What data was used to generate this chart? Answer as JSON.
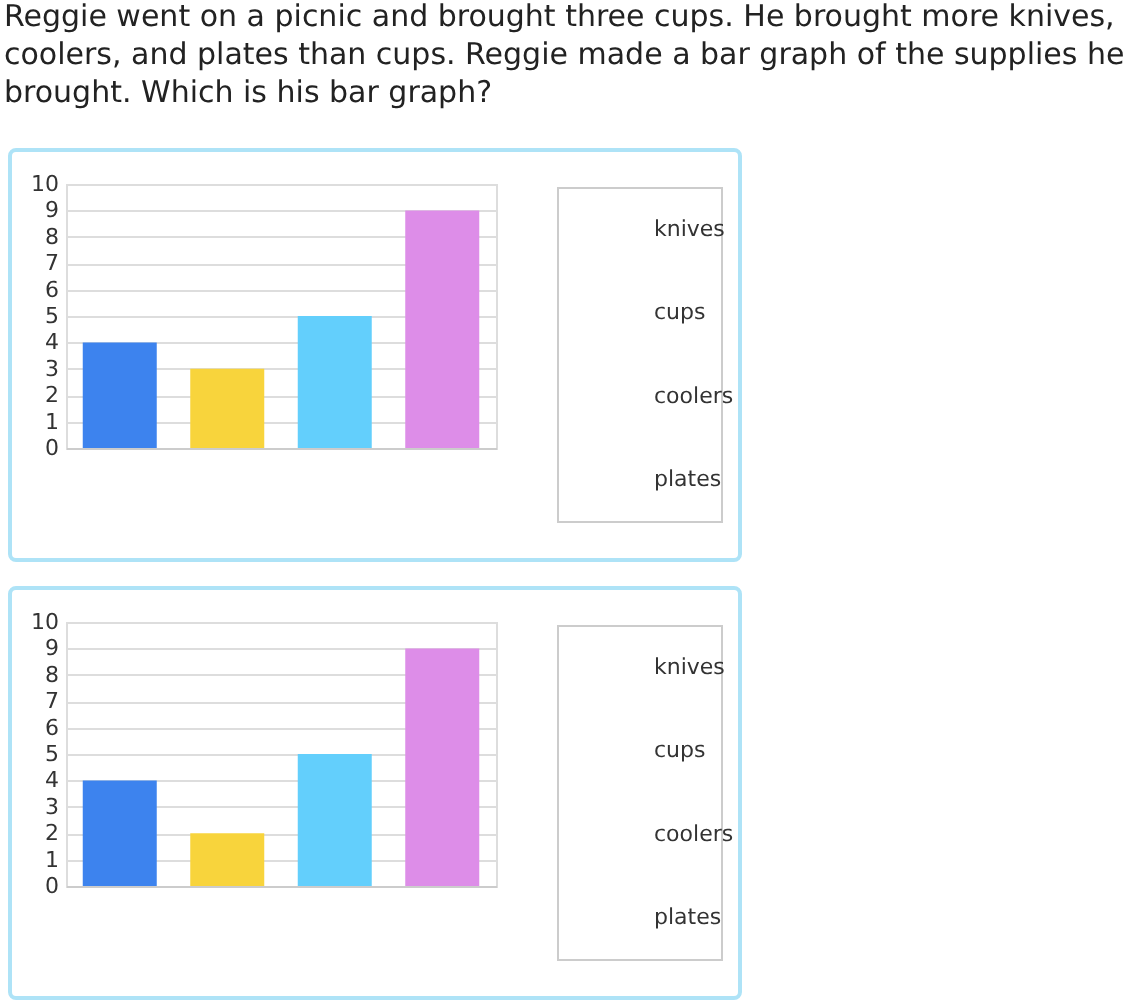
{
  "chart_data": [
    {
      "type": "bar",
      "title": "Reggie went on a picnic and brought three cups. He brought more knives, coolers, and plates than cups. Reggie made a bar graph of the supplies he brought. Which is his bar graph?",
      "categories": [
        null,
        null,
        null,
        null
      ],
      "values": [
        4,
        3,
        5,
        9
      ],
      "colors": [
        "#3d83ee",
        "#f8d43c",
        "#63cffc",
        "#dd8de8"
      ],
      "ylim": [
        0,
        10
      ],
      "yticks": [
        0,
        1,
        2,
        3,
        4,
        5,
        6,
        7,
        8,
        9,
        10
      ],
      "grid": "y",
      "tick_labels": "y",
      "annotations": [
        "knives",
        "cups",
        "coolers",
        "plates"
      ]
    },
    {
      "type": "bar",
      "categories": [
        null,
        null,
        null,
        null
      ],
      "values": [
        4,
        2,
        5,
        9
      ],
      "colors": [
        "#3d83ee",
        "#f8d43c",
        "#63cffc",
        "#dd8de8"
      ],
      "ylim": [
        0,
        10
      ],
      "yticks": [
        0,
        1,
        2,
        3,
        4,
        5,
        6,
        7,
        8,
        9,
        10
      ],
      "grid": "y",
      "tick_labels": "y",
      "annotations": [
        "knives",
        "cups",
        "coolers",
        "plates"
      ]
    }
  ]
}
